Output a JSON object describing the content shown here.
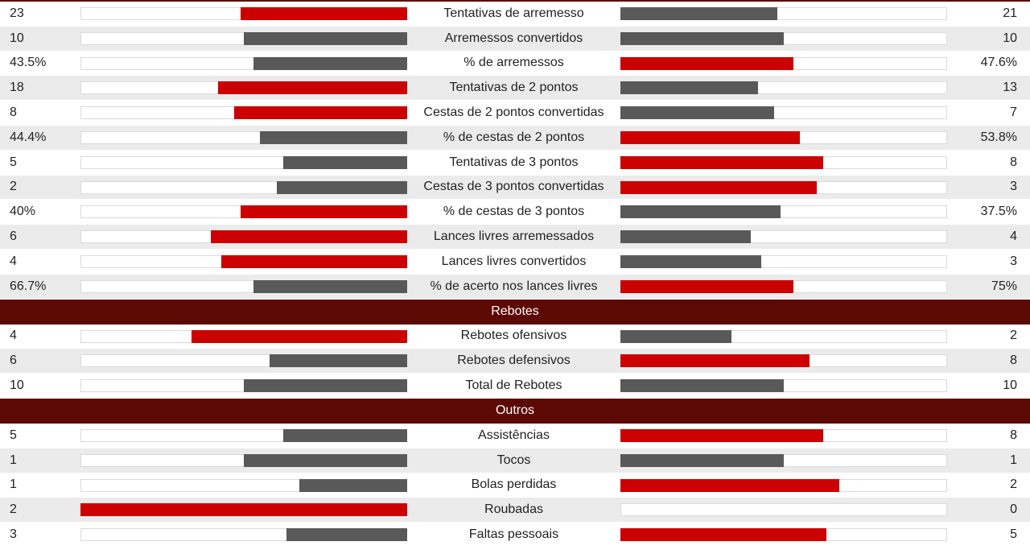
{
  "colors": {
    "highlight": "#cc0000",
    "neutral": "#595959",
    "section_bg": "#5c0803"
  },
  "groups": [
    {
      "title": "",
      "rows": [
        {
          "label": "Tentativas de arremesso",
          "left": "23",
          "right": "21",
          "left_fill": 0.51,
          "right_fill": 0.48,
          "leader": "left"
        },
        {
          "label": "Arremessos convertidos",
          "left": "10",
          "right": "10",
          "left_fill": 0.5,
          "right_fill": 0.5,
          "leader": "none"
        },
        {
          "label": "% de arremessos",
          "left": "43.5%",
          "right": "47.6%",
          "left_fill": 0.47,
          "right_fill": 0.53,
          "leader": "right"
        },
        {
          "label": "Tentativas de 2 pontos",
          "left": "18",
          "right": "13",
          "left_fill": 0.58,
          "right_fill": 0.42,
          "leader": "left"
        },
        {
          "label": "Cestas de 2 pontos convertidas",
          "left": "8",
          "right": "7",
          "left_fill": 0.53,
          "right_fill": 0.47,
          "leader": "left"
        },
        {
          "label": "% de cestas de 2 pontos",
          "left": "44.4%",
          "right": "53.8%",
          "left_fill": 0.45,
          "right_fill": 0.55,
          "leader": "right"
        },
        {
          "label": "Tentativas de 3 pontos",
          "left": "5",
          "right": "8",
          "left_fill": 0.38,
          "right_fill": 0.62,
          "leader": "right"
        },
        {
          "label": "Cestas de 3 pontos convertidas",
          "left": "2",
          "right": "3",
          "left_fill": 0.4,
          "right_fill": 0.6,
          "leader": "right"
        },
        {
          "label": "% de cestas de 3 pontos",
          "left": "40%",
          "right": "37.5%",
          "left_fill": 0.51,
          "right_fill": 0.49,
          "leader": "left"
        },
        {
          "label": "Lances livres arremessados",
          "left": "6",
          "right": "4",
          "left_fill": 0.6,
          "right_fill": 0.4,
          "leader": "left"
        },
        {
          "label": "Lances livres convertidos",
          "left": "4",
          "right": "3",
          "left_fill": 0.57,
          "right_fill": 0.43,
          "leader": "left"
        },
        {
          "label": "% de acerto nos lances livres",
          "left": "66.7%",
          "right": "75%",
          "left_fill": 0.47,
          "right_fill": 0.53,
          "leader": "right"
        }
      ]
    },
    {
      "title": "Rebotes",
      "rows": [
        {
          "label": "Rebotes ofensivos",
          "left": "4",
          "right": "2",
          "left_fill": 0.66,
          "right_fill": 0.34,
          "leader": "left"
        },
        {
          "label": "Rebotes defensivos",
          "left": "6",
          "right": "8",
          "left_fill": 0.42,
          "right_fill": 0.58,
          "leader": "right"
        },
        {
          "label": "Total de Rebotes",
          "left": "10",
          "right": "10",
          "left_fill": 0.5,
          "right_fill": 0.5,
          "leader": "none"
        }
      ]
    },
    {
      "title": "Outros",
      "rows": [
        {
          "label": "Assistências",
          "left": "5",
          "right": "8",
          "left_fill": 0.38,
          "right_fill": 0.62,
          "leader": "right"
        },
        {
          "label": "Tocos",
          "left": "1",
          "right": "1",
          "left_fill": 0.5,
          "right_fill": 0.5,
          "leader": "none"
        },
        {
          "label": "Bolas perdidas",
          "left": "1",
          "right": "2",
          "left_fill": 0.33,
          "right_fill": 0.67,
          "leader": "right"
        },
        {
          "label": "Roubadas",
          "left": "2",
          "right": "0",
          "left_fill": 1.0,
          "right_fill": 0.0,
          "leader": "left"
        },
        {
          "label": "Faltas pessoais",
          "left": "3",
          "right": "5",
          "left_fill": 0.37,
          "right_fill": 0.63,
          "leader": "right"
        }
      ]
    }
  ]
}
